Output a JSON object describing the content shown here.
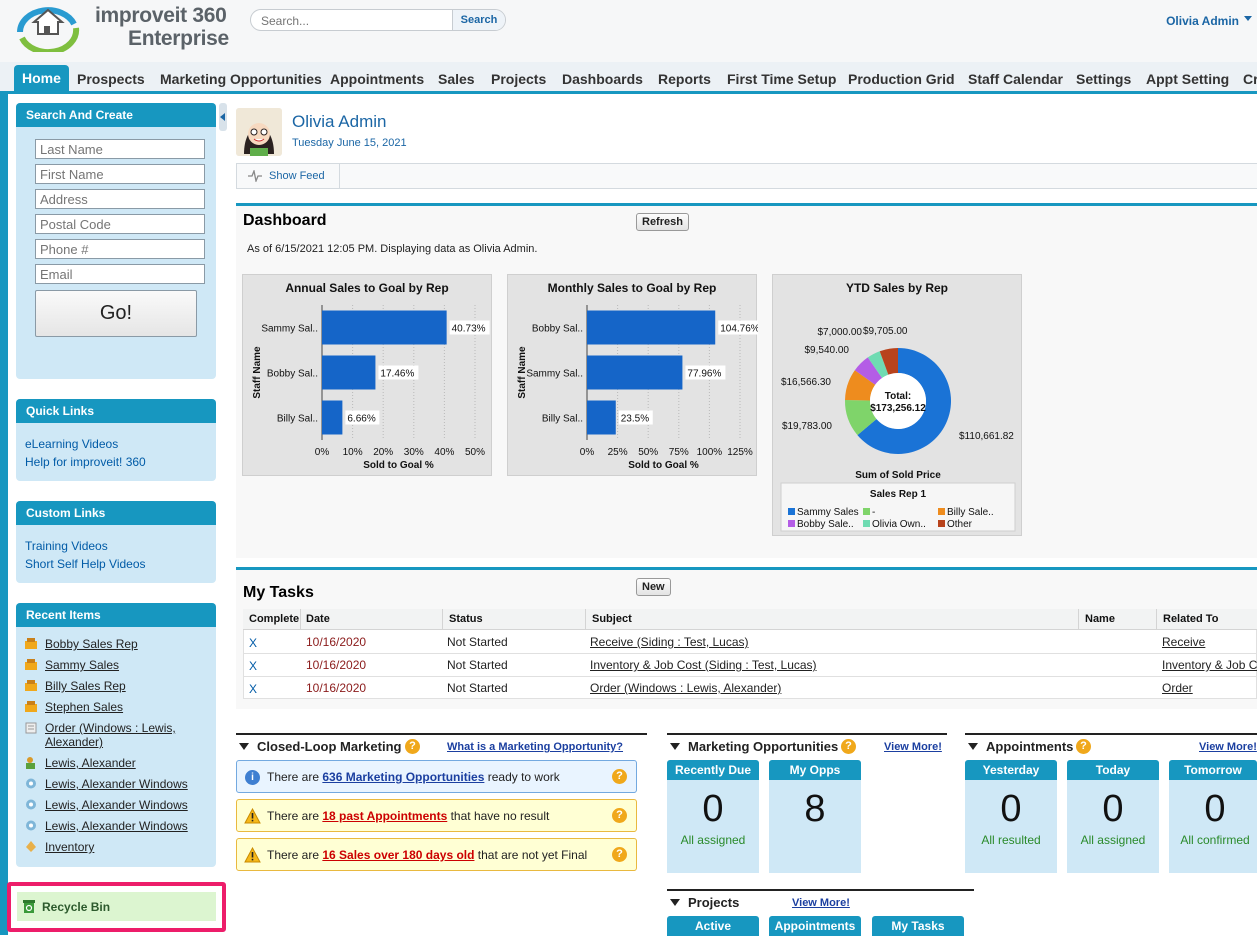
{
  "header": {
    "logo_line1": "improveit 360",
    "logo_line2": "Enterprise",
    "search_placeholder": "Search...",
    "search_button": "Search",
    "user_name": "Olivia Admin"
  },
  "nav": {
    "tabs": [
      "Home",
      "Prospects",
      "Marketing Opportunities",
      "Appointments",
      "Sales",
      "Projects",
      "Dashboards",
      "Reports",
      "First Time Setup",
      "Production Grid",
      "Staff Calendar",
      "Settings",
      "Appt Setting",
      "Cr"
    ]
  },
  "sidebar": {
    "search_create": {
      "title": "Search And Create",
      "fields": [
        "Last Name",
        "First Name",
        "Address",
        "Postal Code",
        "Phone #",
        "Email"
      ],
      "go_label": "Go!"
    },
    "quick_links": {
      "title": "Quick Links",
      "items": [
        "eLearning Videos",
        "Help for improveit! 360"
      ]
    },
    "custom_links": {
      "title": "Custom Links",
      "items": [
        "Training Videos",
        "Short Self Help Videos"
      ]
    },
    "recent_items": {
      "title": "Recent Items",
      "items": [
        {
          "label": "Bobby Sales Rep",
          "icon": "staff-icon"
        },
        {
          "label": "Sammy Sales",
          "icon": "staff-icon"
        },
        {
          "label": "Billy Sales Rep",
          "icon": "staff-icon"
        },
        {
          "label": "Stephen Sales",
          "icon": "staff-icon"
        },
        {
          "label": "Order (Windows : Lewis, Alexander)",
          "icon": "order-icon"
        },
        {
          "label": "Lewis, Alexander",
          "icon": "contact-icon"
        },
        {
          "label": "Lewis, Alexander Windows",
          "icon": "gear-icon"
        },
        {
          "label": "Lewis, Alexander Windows",
          "icon": "gear-icon"
        },
        {
          "label": "Lewis, Alexander Windows",
          "icon": "gear-icon"
        },
        {
          "label": "Inventory",
          "icon": "inventory-icon"
        }
      ]
    },
    "recycle_bin": "Recycle Bin"
  },
  "profile": {
    "name": "Olivia Admin",
    "date": "Tuesday June 15, 2021",
    "show_feed": "Show Feed"
  },
  "dashboard": {
    "title": "Dashboard",
    "refresh": "Refresh",
    "as_of": "As of 6/15/2021 12:05 PM. Displaying data as Olivia Admin."
  },
  "chart_data": [
    {
      "type": "bar",
      "title": "Annual Sales to Goal by Rep",
      "orientation": "horizontal",
      "categories": [
        "Sammy Sal..",
        "Bobby Sal..",
        "Billy Sal.."
      ],
      "values": [
        40.73,
        17.46,
        6.66
      ],
      "value_labels": [
        "40.73%",
        "17.46%",
        "6.66%"
      ],
      "xlabel": "Sold to Goal %",
      "ylabel": "Staff Name",
      "xlim": [
        0,
        50
      ],
      "xticks": [
        "0%",
        "10%",
        "20%",
        "30%",
        "40%",
        "50%"
      ],
      "color": "#1565c8"
    },
    {
      "type": "bar",
      "title": "Monthly Sales to Goal by Rep",
      "orientation": "horizontal",
      "categories": [
        "Bobby Sal..",
        "Sammy Sal..",
        "Billy Sal.."
      ],
      "values": [
        104.76,
        77.96,
        23.5
      ],
      "value_labels": [
        "104.76%",
        "77.96%",
        "23.5%"
      ],
      "xlabel": "Sold to Goal %",
      "ylabel": "Staff Name",
      "xlim": [
        0,
        125
      ],
      "xticks": [
        "0%",
        "25%",
        "50%",
        "75%",
        "100%",
        "125%"
      ],
      "color": "#1565c8"
    },
    {
      "type": "pie",
      "title": "YTD Sales by Rep",
      "center_label": "Total:",
      "center_value": "$173,256.12",
      "xlabel": "Sum of Sold Price",
      "legend_title": "Sales Rep 1",
      "slices": [
        {
          "name": "Sammy Sales",
          "value": 110661.82,
          "label": "$110,661.82",
          "color": "#1a73d6"
        },
        {
          "name": "-",
          "value": 19783.0,
          "label": "$19,783.00",
          "color": "#7fd46a"
        },
        {
          "name": "Billy Sale..",
          "value": 16566.3,
          "label": "$16,566.30",
          "color": "#ee8c1e"
        },
        {
          "name": "Bobby Sale..",
          "value": 9540.0,
          "label": "$9,540.00",
          "color": "#b45de6"
        },
        {
          "name": "Olivia Own..",
          "value": 7000.0,
          "label": "$7,000.00",
          "color": "#6fdbb2"
        },
        {
          "name": "Other",
          "value": 9705.0,
          "label": "$9,705.00",
          "color": "#b8431c"
        }
      ]
    }
  ],
  "tasks": {
    "title": "My Tasks",
    "new": "New",
    "columns": [
      "Complete",
      "Date",
      "Status",
      "Subject",
      "Name",
      "Related To"
    ],
    "rows": [
      {
        "complete": "X",
        "date": "10/16/2020",
        "status": "Not Started",
        "subject": "Receive (Siding : Test, Lucas)",
        "name": "",
        "related": "Receive"
      },
      {
        "complete": "X",
        "date": "10/16/2020",
        "status": "Not Started",
        "subject": "Inventory & Job Cost (Siding : Test, Lucas)",
        "name": "",
        "related": "Inventory & Job C"
      },
      {
        "complete": "X",
        "date": "10/16/2020",
        "status": "Not Started",
        "subject": "Order (Windows : Lewis, Alexander)",
        "name": "",
        "related": "Order"
      }
    ]
  },
  "closed_loop": {
    "title": "Closed-Loop Marketing",
    "link": "What is a Marketing Opportunity?",
    "alerts": [
      {
        "pre": "There are ",
        "link": "636 Marketing Opportunities",
        "post": " ready to work",
        "type": "info"
      },
      {
        "pre": "There are ",
        "link": "18 past Appointments",
        "post": " that have no result",
        "type": "warn"
      },
      {
        "pre": "There are ",
        "link": "16 Sales over 180 days old",
        "post": " that are not yet Final",
        "type": "warn"
      }
    ]
  },
  "marketing_opps": {
    "title": "Marketing Opportunities",
    "view_more": "View More!",
    "tiles": [
      {
        "label": "Recently Due",
        "value": "0",
        "sub": "All assigned"
      },
      {
        "label": "My Opps",
        "value": "8",
        "sub": ""
      }
    ]
  },
  "appointments": {
    "title": "Appointments",
    "view_more": "View More!",
    "tiles": [
      {
        "label": "Yesterday",
        "value": "0",
        "sub": "All resulted"
      },
      {
        "label": "Today",
        "value": "0",
        "sub": "All assigned"
      },
      {
        "label": "Tomorrow",
        "value": "0",
        "sub": "All confirmed"
      }
    ]
  },
  "projects": {
    "title": "Projects",
    "view_more": "View More!",
    "tiles": [
      "Active",
      "Appointments",
      "My Tasks"
    ]
  }
}
